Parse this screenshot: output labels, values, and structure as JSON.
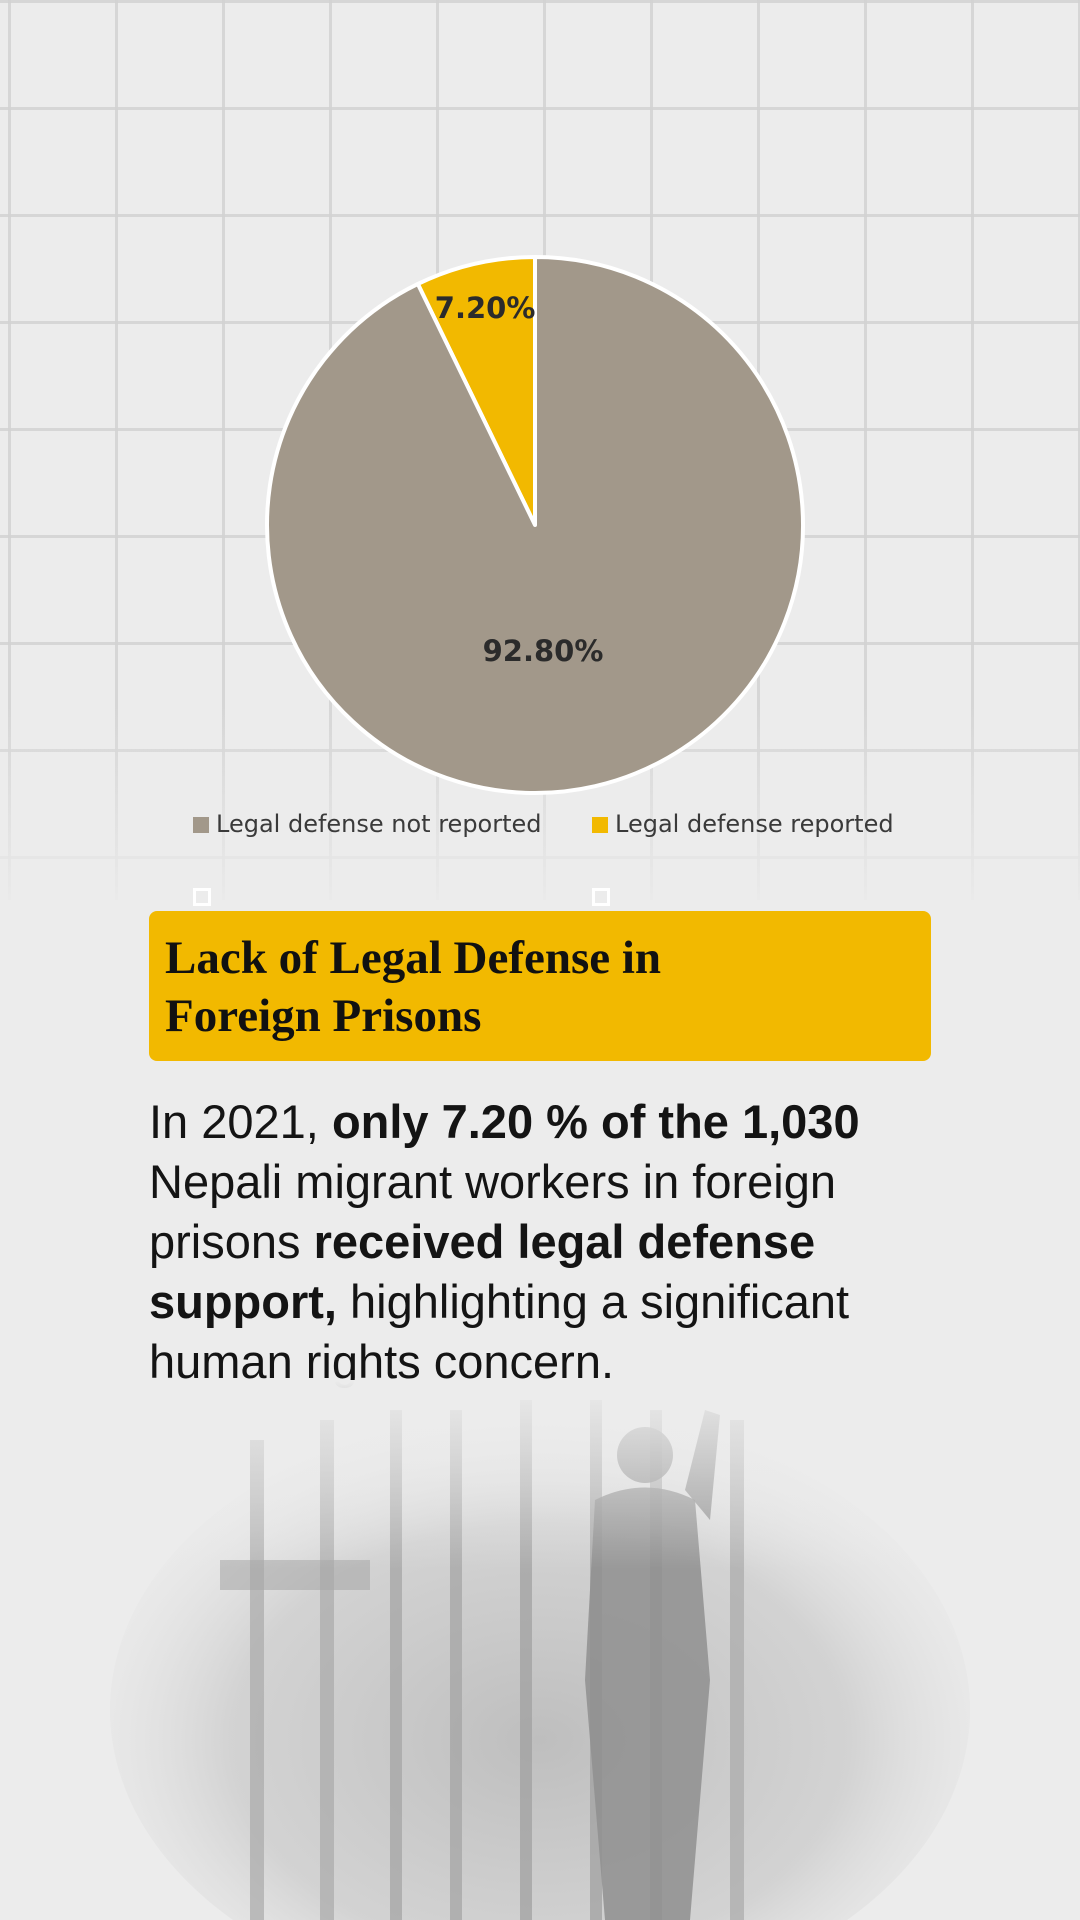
{
  "chart_data": {
    "type": "pie",
    "slices": [
      {
        "label": "Legal defense not reported",
        "value": 92.8,
        "display": "92.80%",
        "color": "#a2988a"
      },
      {
        "label": "Legal defense reported",
        "value": 7.2,
        "display": "7.20%",
        "color": "#f2b900"
      }
    ],
    "legend_position": "bottom",
    "slice_border_color": "#ffffff"
  },
  "headline": {
    "title": "Lack of Legal Defense in Foreign Prisons",
    "background_color": "#f2b900"
  },
  "body": {
    "part1": "In 2021, ",
    "bold1": "only 7.20 % of the 1,030",
    "part2": " Nepali migrant workers in foreign prisons ",
    "bold2": "received legal defense support,",
    "part3": " highlighting a significant human rights concern."
  },
  "background": {
    "grid": "light grid pattern",
    "photo": "faded silhouette of a person behind prison bars"
  }
}
